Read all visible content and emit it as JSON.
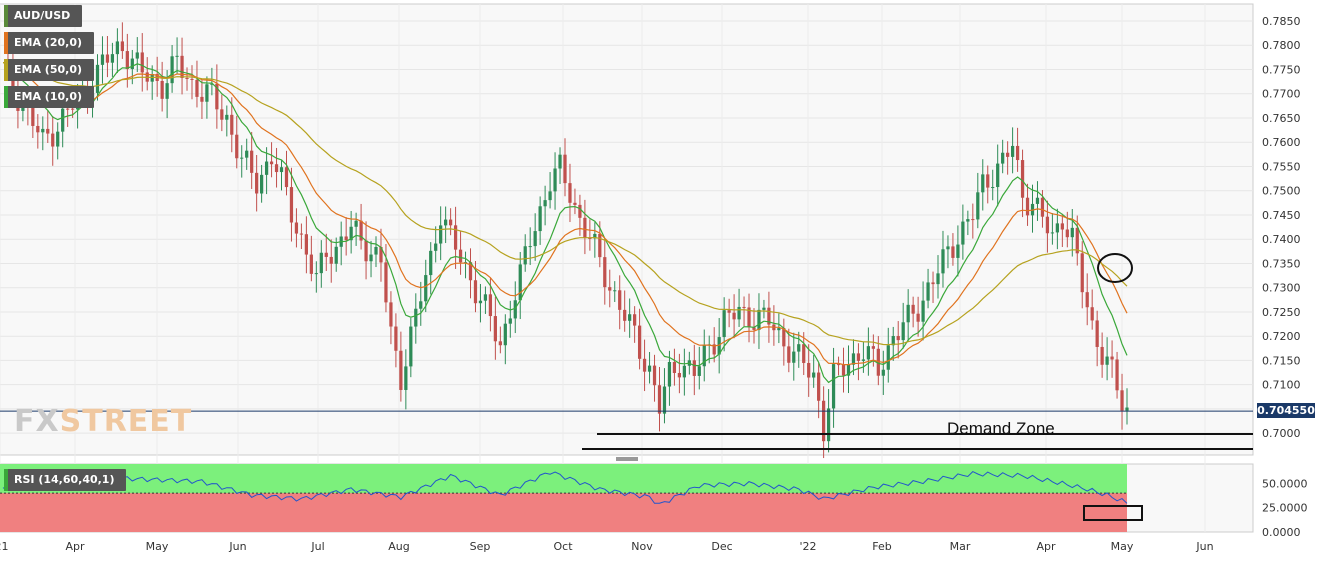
{
  "chart_data": [
    {
      "type": "candlestick",
      "symbol": "AUD/USD",
      "indicators": [
        "EMA (20,0)",
        "EMA (50,0)",
        "EMA (10,0)"
      ],
      "ylim": [
        0.6955,
        0.7885
      ],
      "y_ticks": [
        "0.7850",
        "0.7800",
        "0.7750",
        "0.7700",
        "0.7650",
        "0.7600",
        "0.7550",
        "0.7500",
        "0.7450",
        "0.7400",
        "0.7350",
        "0.7300",
        "0.7250",
        "0.7200",
        "0.7150",
        "0.7100",
        "0.7050",
        "0.7000"
      ],
      "x_ticks": [
        "'21",
        "Apr",
        "May",
        "Jun",
        "Jul",
        "Aug",
        "Sep",
        "Oct",
        "Nov",
        "Dec",
        "'22",
        "Feb",
        "Mar",
        "Apr",
        "May",
        "Jun"
      ],
      "last_price": "0.704550",
      "annotations": [
        "Demand Zone"
      ],
      "price_path": [
        [
          0,
          0.775
        ],
        [
          4,
          0.768
        ],
        [
          8,
          0.76
        ],
        [
          12,
          0.765
        ],
        [
          16,
          0.77
        ],
        [
          20,
          0.776
        ],
        [
          24,
          0.78
        ],
        [
          28,
          0.774
        ],
        [
          32,
          0.772
        ],
        [
          35,
          0.776
        ],
        [
          38,
          0.772
        ],
        [
          42,
          0.769
        ],
        [
          45,
          0.765
        ],
        [
          48,
          0.756
        ],
        [
          51,
          0.752
        ],
        [
          54,
          0.757
        ],
        [
          57,
          0.749
        ],
        [
          60,
          0.74
        ],
        [
          63,
          0.731
        ],
        [
          65,
          0.738
        ],
        [
          67,
          0.738
        ],
        [
          70,
          0.742
        ],
        [
          73,
          0.739
        ],
        [
          76,
          0.735
        ],
        [
          78,
          0.72
        ],
        [
          80,
          0.712
        ],
        [
          82,
          0.72
        ],
        [
          84,
          0.728
        ],
        [
          86,
          0.736
        ],
        [
          88,
          0.746
        ],
        [
          90,
          0.74
        ],
        [
          92,
          0.736
        ],
        [
          95,
          0.73
        ],
        [
          98,
          0.723
        ],
        [
          100,
          0.718
        ],
        [
          102,
          0.726
        ],
        [
          104,
          0.732
        ],
        [
          106,
          0.74
        ],
        [
          108,
          0.746
        ],
        [
          110,
          0.752
        ],
        [
          112,
          0.754
        ],
        [
          114,
          0.75
        ],
        [
          116,
          0.744
        ],
        [
          118,
          0.74
        ],
        [
          121,
          0.733
        ],
        [
          124,
          0.726
        ],
        [
          127,
          0.72
        ],
        [
          130,
          0.713
        ],
        [
          132,
          0.705
        ],
        [
          134,
          0.712
        ],
        [
          136,
          0.715
        ],
        [
          139,
          0.712
        ],
        [
          142,
          0.718
        ],
        [
          145,
          0.723
        ],
        [
          148,
          0.725
        ],
        [
          151,
          0.724
        ],
        [
          154,
          0.723
        ],
        [
          157,
          0.719
        ],
        [
          160,
          0.715
        ],
        [
          163,
          0.712
        ],
        [
          165,
          0.701
        ],
        [
          167,
          0.711
        ],
        [
          170,
          0.715
        ],
        [
          173,
          0.717
        ],
        [
          176,
          0.713
        ],
        [
          179,
          0.72
        ],
        [
          182,
          0.723
        ],
        [
          184,
          0.726
        ],
        [
          186,
          0.73
        ],
        [
          189,
          0.735
        ],
        [
          192,
          0.741
        ],
        [
          195,
          0.745
        ],
        [
          197,
          0.751
        ],
        [
          199,
          0.754
        ],
        [
          201,
          0.756
        ],
        [
          203,
          0.759
        ],
        [
          205,
          0.749
        ],
        [
          207,
          0.748
        ],
        [
          209,
          0.744
        ],
        [
          211,
          0.74
        ],
        [
          213,
          0.745
        ],
        [
          215,
          0.74
        ],
        [
          217,
          0.73
        ],
        [
          219,
          0.722
        ],
        [
          221,
          0.717
        ],
        [
          223,
          0.712
        ],
        [
          225,
          0.706
        ],
        [
          226,
          0.7045
        ]
      ]
    },
    {
      "type": "line",
      "indicator": "RSI (14,60,40,1)",
      "ylim": [
        0,
        70
      ],
      "y_ticks": [
        "50.0000",
        "25.0000",
        "0.0000"
      ],
      "bands": {
        "upper": 60,
        "lower": 40
      },
      "path": [
        [
          0,
          45
        ],
        [
          10,
          52
        ],
        [
          20,
          56
        ],
        [
          30,
          54
        ],
        [
          40,
          52
        ],
        [
          50,
          38
        ],
        [
          60,
          34
        ],
        [
          70,
          44
        ],
        [
          80,
          36
        ],
        [
          90,
          58
        ],
        [
          100,
          38
        ],
        [
          110,
          62
        ],
        [
          120,
          44
        ],
        [
          130,
          36
        ],
        [
          132,
          28
        ],
        [
          140,
          48
        ],
        [
          150,
          50
        ],
        [
          160,
          44
        ],
        [
          165,
          34
        ],
        [
          175,
          46
        ],
        [
          185,
          52
        ],
        [
          195,
          60
        ],
        [
          205,
          58
        ],
        [
          213,
          50
        ],
        [
          218,
          44
        ],
        [
          222,
          38
        ],
        [
          226,
          30
        ]
      ]
    }
  ]
}
